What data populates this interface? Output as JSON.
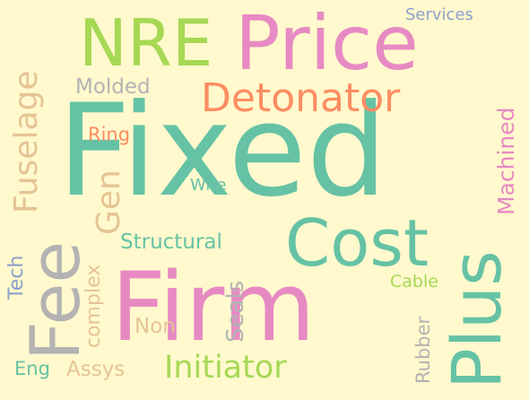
{
  "colors": {
    "background": "#fff9cd",
    "teal": "#66c2a5",
    "pink": "#e78ac3",
    "orange": "#fc8d62",
    "lime": "#a6d854",
    "tan": "#e5c494",
    "gray": "#b3b3b3",
    "blue": "#8da0cb",
    "yellow": "#ffd92f"
  },
  "words": {
    "fixed": "Fixed",
    "price": "Price",
    "nre": "NRE",
    "firm": "Firm",
    "cost": "Cost",
    "plus": "Plus",
    "fee": "Fee",
    "detonator": "Detonator",
    "initiator": "Initiator",
    "fuselage": "Fuselage",
    "gen": "Gen",
    "structural": "Structural",
    "machined": "Machined",
    "molded": "Molded",
    "services": "Services",
    "ring": "Ring",
    "wire": "Wire",
    "tech": "Tech",
    "complex": "complex",
    "seals": "Seals",
    "non": "Non",
    "rubber": "Rubber",
    "cable": "Cable",
    "eng": "Eng",
    "assys": "Assys"
  }
}
